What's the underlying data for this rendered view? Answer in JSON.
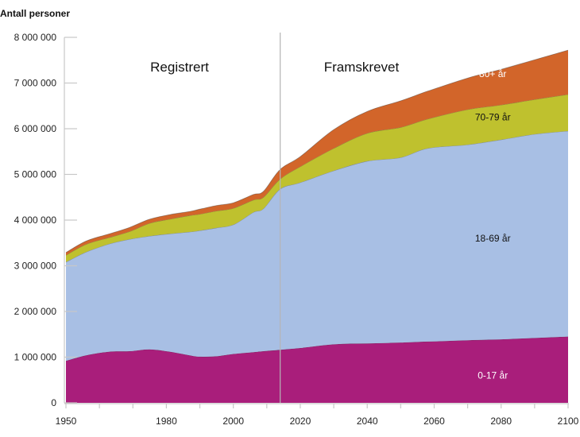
{
  "chart_data": {
    "type": "area",
    "stacked": true,
    "title": "",
    "ylabel": "Antall personer",
    "xlabel": "",
    "xlim": [
      1950,
      2100
    ],
    "ylim": [
      0,
      8000000
    ],
    "grid": false,
    "x_ticks_major": [
      1950,
      1980,
      2000,
      2020,
      2040,
      2060,
      2080,
      2100
    ],
    "x_ticks_minor_step": 10,
    "y_ticks": [
      {
        "value": 0,
        "label": "0"
      },
      {
        "value": 1000000,
        "label": "1 000 000"
      },
      {
        "value": 2000000,
        "label": "2 000 000"
      },
      {
        "value": 3000000,
        "label": "3 000 000"
      },
      {
        "value": 4000000,
        "label": "4 000 000"
      },
      {
        "value": 5000000,
        "label": "5 000 000"
      },
      {
        "value": 6000000,
        "label": "6 000 000"
      },
      {
        "value": 7000000,
        "label": "7 000 000"
      },
      {
        "value": 8000000,
        "label": "8 000 000"
      }
    ],
    "divider": {
      "x": 2014,
      "left_label": "Registrert",
      "right_label": "Framskrevet"
    },
    "x": [
      1950,
      1956,
      1963,
      1969,
      1975,
      1981,
      1987,
      1990,
      1995,
      2000,
      2006,
      2009,
      2014,
      2020,
      2030,
      2040,
      2050,
      2058,
      2070,
      2080,
      2090,
      2100
    ],
    "series": [
      {
        "name": "0-17 år",
        "color": "#a91e7b",
        "label_color": "#ffffff",
        "values": [
          920000,
          1040000,
          1120000,
          1130000,
          1170000,
          1120000,
          1040000,
          1010000,
          1020000,
          1070000,
          1110000,
          1130000,
          1160000,
          1200000,
          1280000,
          1300000,
          1320000,
          1340000,
          1370000,
          1390000,
          1420000,
          1450000
        ]
      },
      {
        "name": "18-69 år",
        "color": "#a8bfe4",
        "label_color": "#111111",
        "values": [
          2160000,
          2260000,
          2360000,
          2450000,
          2480000,
          2580000,
          2700000,
          2760000,
          2810000,
          2830000,
          3060000,
          3120000,
          3520000,
          3620000,
          3800000,
          3990000,
          4050000,
          4230000,
          4280000,
          4370000,
          4460000,
          4500000
        ]
      },
      {
        "name": "70-79 år",
        "color": "#bfc12e",
        "label_color": "#111111",
        "values": [
          150000,
          170000,
          140000,
          170000,
          280000,
          320000,
          360000,
          360000,
          370000,
          360000,
          270000,
          250000,
          220000,
          350000,
          490000,
          610000,
          660000,
          640000,
          770000,
          760000,
          760000,
          800000
        ]
      },
      {
        "name": "80+ år",
        "color": "#d2652a",
        "label_color": "#ffffff",
        "values": [
          60000,
          70000,
          80000,
          90000,
          90000,
          100000,
          90000,
          110000,
          120000,
          120000,
          120000,
          130000,
          210000,
          220000,
          410000,
          480000,
          580000,
          610000,
          690000,
          780000,
          870000,
          970000
        ]
      }
    ],
    "band_labels": [
      {
        "series": "0-17 år",
        "x": 2087,
        "y": 600000
      },
      {
        "series": "18-69 år",
        "x": 2087,
        "y": 3600000
      },
      {
        "series": "70-79 år",
        "x": 2087,
        "y": 6250000
      },
      {
        "series": "80+ år",
        "x": 2087,
        "y": 7200000
      }
    ]
  }
}
